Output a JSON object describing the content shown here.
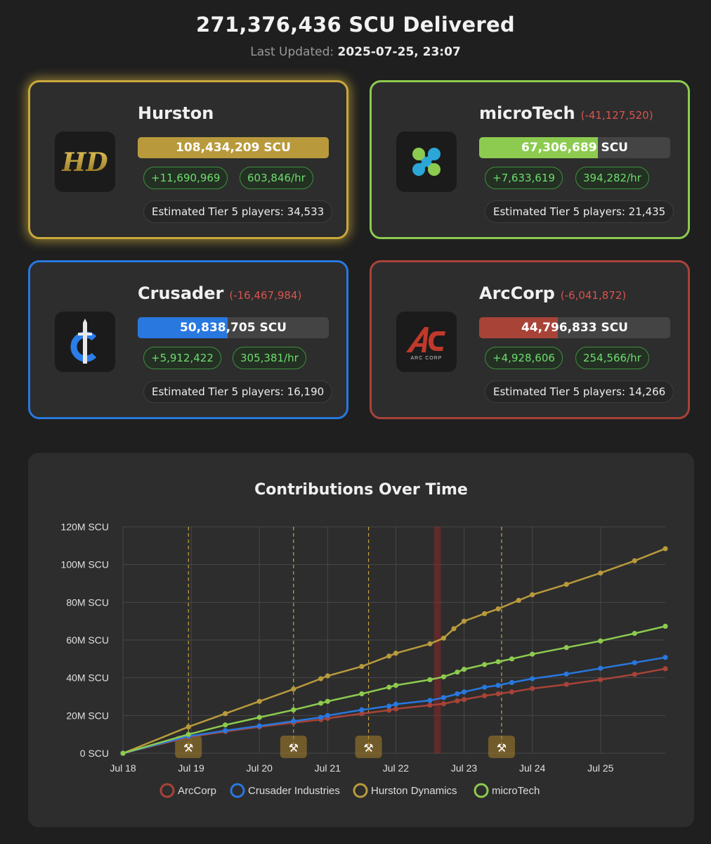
{
  "header": {
    "total": "271,376,436 SCU Delivered",
    "updated_label": "Last Updated:",
    "updated_value": "2025-07-25, 23:07"
  },
  "factions": {
    "hurston": {
      "name": "Hurston",
      "delta": "",
      "scu": "108,434,209 SCU",
      "gain": "+11,690,969",
      "rate": "603,846/hr",
      "tier": "Estimated Tier 5 players: 34,533",
      "color": "#b89a3c",
      "fill_fraction": 1.0,
      "icon": "hurston-logo-icon",
      "logo_text": "HD"
    },
    "microtech": {
      "name": "microTech",
      "delta": "(-41,127,520)",
      "scu": "67,306,689 SCU",
      "gain": "+7,633,619",
      "rate": "394,282/hr",
      "tier": "Estimated Tier 5 players: 21,435",
      "color": "#8ccb4f",
      "fill_fraction": 0.62,
      "icon": "microtech-logo-icon"
    },
    "crusader": {
      "name": "Crusader",
      "delta": "(-16,467,984)",
      "scu": "50,838,705 SCU",
      "gain": "+5,912,422",
      "rate": "305,381/hr",
      "tier": "Estimated Tier 5 players: 16,190",
      "color": "#2878e0",
      "fill_fraction": 0.469,
      "icon": "crusader-logo-icon"
    },
    "arccorp": {
      "name": "ArcCorp",
      "delta": "(-6,041,872)",
      "scu": "44,796,833 SCU",
      "gain": "+4,928,606",
      "rate": "254,566/hr",
      "tier": "Estimated Tier 5 players: 14,266",
      "color": "#a84338",
      "fill_fraction": 0.413,
      "icon": "arccorp-logo-icon",
      "logo_text": "ARC CORP"
    }
  },
  "chart_data": {
    "type": "line",
    "title": "Contributions Over Time",
    "xlabel": "",
    "ylabel": "",
    "x_ticks": [
      "Jul 18",
      "Jul 19",
      "Jul 20",
      "Jul 21",
      "Jul 22",
      "Jul 23",
      "Jul 24",
      "Jul 25"
    ],
    "y_ticks": [
      "0 SCU",
      "20M SCU",
      "40M SCU",
      "60M SCU",
      "80M SCU",
      "100M SCU",
      "120M SCU"
    ],
    "ylim": [
      0,
      120
    ],
    "xlim": [
      0,
      7.95
    ],
    "x_unit": "days since Jul 18",
    "grid": true,
    "legend_position": "bottom",
    "event_lines_x": [
      0.96,
      2.5,
      3.6,
      5.55
    ],
    "highlight_band_x": [
      4.56,
      4.66
    ],
    "series": [
      {
        "name": "ArcCorp",
        "color": "#a84338",
        "points": [
          [
            0,
            0
          ],
          [
            0.96,
            8.5
          ],
          [
            1.5,
            11.5
          ],
          [
            2.0,
            14
          ],
          [
            2.5,
            16.2
          ],
          [
            2.9,
            17.8
          ],
          [
            3.0,
            18.5
          ],
          [
            3.5,
            21
          ],
          [
            3.9,
            22.8
          ],
          [
            4.0,
            23.5
          ],
          [
            4.5,
            25.5
          ],
          [
            4.7,
            26.2
          ],
          [
            4.9,
            27.8
          ],
          [
            5.0,
            28.5
          ],
          [
            5.3,
            30.5
          ],
          [
            5.5,
            31.5
          ],
          [
            5.7,
            32.5
          ],
          [
            6.0,
            34.3
          ],
          [
            6.5,
            36.5
          ],
          [
            7.0,
            39
          ],
          [
            7.5,
            41.8
          ],
          [
            7.95,
            44.8
          ]
        ]
      },
      {
        "name": "Crusader Industries",
        "color": "#2878e0",
        "points": [
          [
            0,
            0
          ],
          [
            0.96,
            9
          ],
          [
            1.5,
            12
          ],
          [
            2.0,
            14.5
          ],
          [
            2.5,
            17
          ],
          [
            2.9,
            19
          ],
          [
            3.0,
            20
          ],
          [
            3.5,
            23
          ],
          [
            3.9,
            25
          ],
          [
            4.0,
            26
          ],
          [
            4.5,
            28
          ],
          [
            4.7,
            29.5
          ],
          [
            4.9,
            31.5
          ],
          [
            5.0,
            32.5
          ],
          [
            5.3,
            35
          ],
          [
            5.5,
            36
          ],
          [
            5.7,
            37.5
          ],
          [
            6.0,
            39.5
          ],
          [
            6.5,
            42
          ],
          [
            7.0,
            45
          ],
          [
            7.5,
            48
          ],
          [
            7.95,
            50.8
          ]
        ]
      },
      {
        "name": "Hurston Dynamics",
        "color": "#b89a3c",
        "points": [
          [
            0,
            0
          ],
          [
            0.96,
            14
          ],
          [
            1.5,
            21
          ],
          [
            2.0,
            27.5
          ],
          [
            2.5,
            34
          ],
          [
            2.9,
            39.5
          ],
          [
            3.0,
            41
          ],
          [
            3.5,
            46
          ],
          [
            3.9,
            51.5
          ],
          [
            4.0,
            53
          ],
          [
            4.5,
            58
          ],
          [
            4.7,
            61
          ],
          [
            4.85,
            66
          ],
          [
            5.0,
            70
          ],
          [
            5.3,
            74
          ],
          [
            5.5,
            76.5
          ],
          [
            5.8,
            81
          ],
          [
            6.0,
            84
          ],
          [
            6.5,
            89.5
          ],
          [
            7.0,
            95.5
          ],
          [
            7.5,
            102
          ],
          [
            7.95,
            108.4
          ]
        ]
      },
      {
        "name": "microTech",
        "color": "#8ccb4f",
        "points": [
          [
            0,
            0
          ],
          [
            0.96,
            10
          ],
          [
            1.5,
            15
          ],
          [
            2.0,
            19
          ],
          [
            2.5,
            23
          ],
          [
            2.9,
            26.5
          ],
          [
            3.0,
            27.5
          ],
          [
            3.5,
            31.5
          ],
          [
            3.9,
            35
          ],
          [
            4.0,
            36
          ],
          [
            4.5,
            39
          ],
          [
            4.7,
            40.5
          ],
          [
            4.9,
            43
          ],
          [
            5.0,
            44.5
          ],
          [
            5.3,
            47
          ],
          [
            5.5,
            48.5
          ],
          [
            5.7,
            50
          ],
          [
            6.0,
            52.5
          ],
          [
            6.5,
            56
          ],
          [
            7.0,
            59.5
          ],
          [
            7.5,
            63.5
          ],
          [
            7.95,
            67.3
          ]
        ]
      }
    ]
  }
}
